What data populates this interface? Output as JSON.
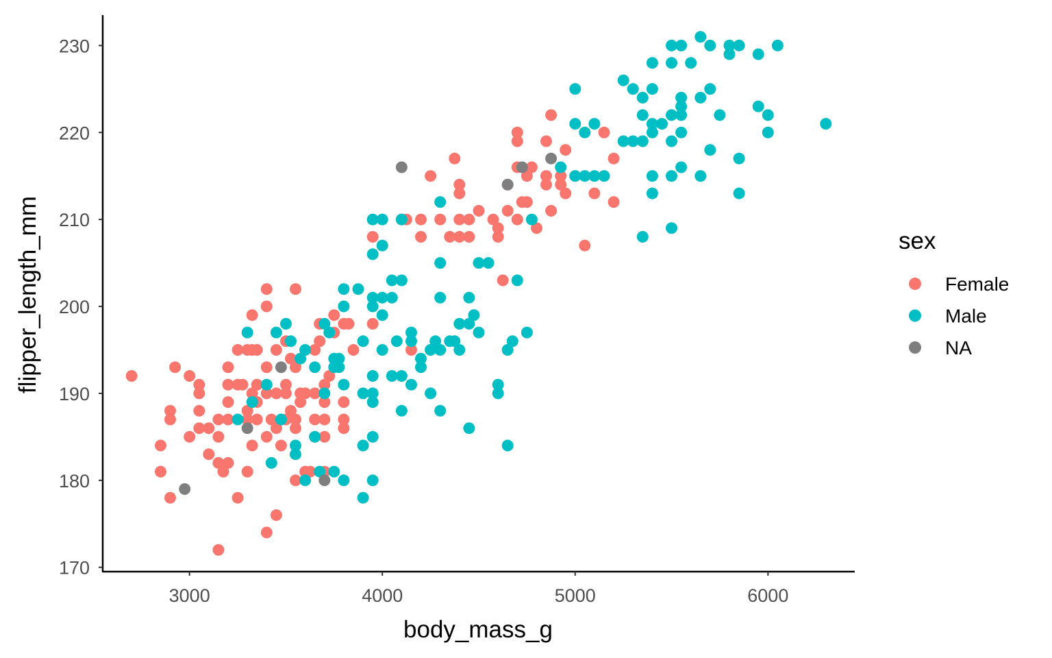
{
  "chart_data": {
    "type": "scatter",
    "title": "",
    "xlabel": "body_mass_g",
    "ylabel": "flipper_length_mm",
    "xlim": [
      2550,
      6450
    ],
    "ylim": [
      169.5,
      233.5
    ],
    "xticks": [
      "3000",
      "4000",
      "5000",
      "6000"
    ],
    "yticks": [
      "170",
      "180",
      "190",
      "200",
      "210",
      "220",
      "230"
    ],
    "grid": false,
    "legend": {
      "title": "sex",
      "position": "right"
    },
    "series": [
      {
        "name": "Female",
        "color": "#F8766D",
        "points": [
          [
            2700,
            192
          ],
          [
            2850,
            184
          ],
          [
            2850,
            181
          ],
          [
            2900,
            188
          ],
          [
            2900,
            187
          ],
          [
            2900,
            178
          ],
          [
            2925,
            193
          ],
          [
            3000,
            192
          ],
          [
            3000,
            185
          ],
          [
            3050,
            191
          ],
          [
            3050,
            190
          ],
          [
            3050,
            188
          ],
          [
            3050,
            186
          ],
          [
            3100,
            186
          ],
          [
            3100,
            183
          ],
          [
            3150,
            187
          ],
          [
            3150,
            185
          ],
          [
            3150,
            182
          ],
          [
            3150,
            172
          ],
          [
            3175,
            181
          ],
          [
            3200,
            193
          ],
          [
            3200,
            191
          ],
          [
            3200,
            189
          ],
          [
            3200,
            187
          ],
          [
            3200,
            182
          ],
          [
            3250,
            195
          ],
          [
            3250,
            191
          ],
          [
            3250,
            178
          ],
          [
            3275,
            191
          ],
          [
            3300,
            195
          ],
          [
            3300,
            188
          ],
          [
            3300,
            187
          ],
          [
            3300,
            181
          ],
          [
            3325,
            199
          ],
          [
            3325,
            195
          ],
          [
            3325,
            190
          ],
          [
            3325,
            184
          ],
          [
            3350,
            195
          ],
          [
            3350,
            191
          ],
          [
            3350,
            189
          ],
          [
            3350,
            187
          ],
          [
            3400,
            202
          ],
          [
            3400,
            200
          ],
          [
            3400,
            193
          ],
          [
            3400,
            190
          ],
          [
            3400,
            185
          ],
          [
            3400,
            174
          ],
          [
            3425,
            187
          ],
          [
            3450,
            195
          ],
          [
            3450,
            190
          ],
          [
            3450,
            186
          ],
          [
            3450,
            176
          ],
          [
            3475,
            184
          ],
          [
            3500,
            196
          ],
          [
            3500,
            191
          ],
          [
            3500,
            190
          ],
          [
            3500,
            187
          ],
          [
            3525,
            194
          ],
          [
            3525,
            188
          ],
          [
            3550,
            202
          ],
          [
            3550,
            193
          ],
          [
            3550,
            187
          ],
          [
            3550,
            186
          ],
          [
            3550,
            180
          ],
          [
            3575,
            190
          ],
          [
            3575,
            189
          ],
          [
            3600,
            190
          ],
          [
            3600,
            181
          ],
          [
            3625,
            181
          ],
          [
            3650,
            195
          ],
          [
            3650,
            190
          ],
          [
            3650,
            187
          ],
          [
            3650,
            185
          ],
          [
            3675,
            196
          ],
          [
            3675,
            198
          ],
          [
            3700,
            191
          ],
          [
            3700,
            189
          ],
          [
            3700,
            187
          ],
          [
            3700,
            185
          ],
          [
            3700,
            181
          ],
          [
            3725,
            192
          ],
          [
            3750,
            199
          ],
          [
            3750,
            197
          ],
          [
            3800,
            198
          ],
          [
            3800,
            189
          ],
          [
            3800,
            187
          ],
          [
            3800,
            186
          ],
          [
            3825,
            198
          ],
          [
            3850,
            195
          ],
          [
            3950,
            208
          ],
          [
            3950,
            198
          ],
          [
            4100,
            210
          ],
          [
            4125,
            210
          ],
          [
            4150,
            195
          ],
          [
            4200,
            210
          ],
          [
            4200,
            208
          ],
          [
            4250,
            215
          ],
          [
            4300,
            210
          ],
          [
            4350,
            208
          ],
          [
            4400,
            214
          ],
          [
            4400,
            213
          ],
          [
            4400,
            210
          ],
          [
            4400,
            208
          ],
          [
            4375,
            217
          ],
          [
            4450,
            210
          ],
          [
            4450,
            208
          ],
          [
            4500,
            211
          ],
          [
            4575,
            210
          ],
          [
            4600,
            209
          ],
          [
            4600,
            208
          ],
          [
            4625,
            203
          ],
          [
            4650,
            214
          ],
          [
            4650,
            211
          ],
          [
            4700,
            220
          ],
          [
            4700,
            219
          ],
          [
            4700,
            216
          ],
          [
            4700,
            210
          ],
          [
            4725,
            212
          ],
          [
            4750,
            215
          ],
          [
            4750,
            212
          ],
          [
            4775,
            216
          ],
          [
            4800,
            209
          ],
          [
            4850,
            219
          ],
          [
            4850,
            215
          ],
          [
            4850,
            214
          ],
          [
            4875,
            222
          ],
          [
            4875,
            211
          ],
          [
            4925,
            215
          ],
          [
            4925,
            214
          ],
          [
            4950,
            218
          ],
          [
            4950,
            213
          ],
          [
            5000,
            215
          ],
          [
            5050,
            207
          ],
          [
            5100,
            213
          ],
          [
            5150,
            220
          ],
          [
            5200,
            217
          ],
          [
            5200,
            212
          ]
        ]
      },
      {
        "name": "Male",
        "color": "#00BFC4",
        "points": [
          [
            3250,
            187
          ],
          [
            3300,
            197
          ],
          [
            3325,
            189
          ],
          [
            3400,
            191
          ],
          [
            3425,
            182
          ],
          [
            3450,
            197
          ],
          [
            3475,
            187
          ],
          [
            3500,
            198
          ],
          [
            3525,
            196
          ],
          [
            3550,
            184
          ],
          [
            3550,
            183
          ],
          [
            3575,
            194
          ],
          [
            3600,
            195
          ],
          [
            3600,
            180
          ],
          [
            3650,
            193
          ],
          [
            3650,
            185
          ],
          [
            3675,
            181
          ],
          [
            3700,
            198
          ],
          [
            3700,
            190
          ],
          [
            3725,
            197
          ],
          [
            3750,
            194
          ],
          [
            3750,
            193
          ],
          [
            3750,
            181
          ],
          [
            3775,
            194
          ],
          [
            3775,
            193
          ],
          [
            3800,
            202
          ],
          [
            3800,
            200
          ],
          [
            3800,
            191
          ],
          [
            3800,
            180
          ],
          [
            3875,
            202
          ],
          [
            3900,
            196
          ],
          [
            3900,
            190
          ],
          [
            3900,
            184
          ],
          [
            3900,
            178
          ],
          [
            3950,
            210
          ],
          [
            3950,
            206
          ],
          [
            3950,
            201
          ],
          [
            3950,
            200
          ],
          [
            3950,
            192
          ],
          [
            3950,
            190
          ],
          [
            3950,
            189
          ],
          [
            3950,
            185
          ],
          [
            3950,
            180
          ],
          [
            4000,
            210
          ],
          [
            4000,
            201
          ],
          [
            4000,
            199
          ],
          [
            4000,
            195
          ],
          [
            4000,
            207
          ],
          [
            4050,
            203
          ],
          [
            4050,
            201
          ],
          [
            4050,
            192
          ],
          [
            4075,
            196
          ],
          [
            4100,
            210
          ],
          [
            4100,
            203
          ],
          [
            4100,
            192
          ],
          [
            4100,
            188
          ],
          [
            4150,
            197
          ],
          [
            4150,
            196
          ],
          [
            4150,
            191
          ],
          [
            4200,
            194
          ],
          [
            4200,
            193
          ],
          [
            4250,
            195
          ],
          [
            4250,
            190
          ],
          [
            4275,
            196
          ],
          [
            4300,
            212
          ],
          [
            4300,
            205
          ],
          [
            4300,
            201
          ],
          [
            4300,
            195
          ],
          [
            4300,
            188
          ],
          [
            4350,
            196
          ],
          [
            4375,
            196
          ],
          [
            4400,
            198
          ],
          [
            4400,
            195
          ],
          [
            4450,
            201
          ],
          [
            4450,
            198
          ],
          [
            4450,
            186
          ],
          [
            4475,
            199
          ],
          [
            4500,
            205
          ],
          [
            4500,
            197
          ],
          [
            4550,
            205
          ],
          [
            4600,
            191
          ],
          [
            4600,
            190
          ],
          [
            4650,
            195
          ],
          [
            4650,
            184
          ],
          [
            4675,
            196
          ],
          [
            4700,
            203
          ],
          [
            4750,
            197
          ],
          [
            4775,
            210
          ],
          [
            4925,
            216
          ],
          [
            5000,
            225
          ],
          [
            5000,
            221
          ],
          [
            5000,
            215
          ],
          [
            5050,
            220
          ],
          [
            5050,
            215
          ],
          [
            5100,
            221
          ],
          [
            5100,
            215
          ],
          [
            5150,
            215
          ],
          [
            5250,
            226
          ],
          [
            5250,
            219
          ],
          [
            5300,
            225
          ],
          [
            5300,
            219
          ],
          [
            5350,
            222
          ],
          [
            5350,
            224
          ],
          [
            5350,
            219
          ],
          [
            5350,
            208
          ],
          [
            5400,
            225
          ],
          [
            5400,
            221
          ],
          [
            5400,
            220
          ],
          [
            5400,
            215
          ],
          [
            5400,
            213
          ],
          [
            5400,
            228
          ],
          [
            5450,
            221
          ],
          [
            5500,
            230
          ],
          [
            5500,
            228
          ],
          [
            5500,
            222
          ],
          [
            5500,
            219
          ],
          [
            5500,
            215
          ],
          [
            5500,
            209
          ],
          [
            5550,
            230
          ],
          [
            5550,
            224
          ],
          [
            5550,
            223
          ],
          [
            5550,
            222
          ],
          [
            5550,
            220
          ],
          [
            5550,
            216
          ],
          [
            5600,
            228
          ],
          [
            5650,
            231
          ],
          [
            5650,
            224
          ],
          [
            5650,
            215
          ],
          [
            5700,
            230
          ],
          [
            5700,
            225
          ],
          [
            5700,
            218
          ],
          [
            5750,
            222
          ],
          [
            5800,
            230
          ],
          [
            5800,
            229
          ],
          [
            5850,
            230
          ],
          [
            5850,
            217
          ],
          [
            5850,
            213
          ],
          [
            5950,
            229
          ],
          [
            5950,
            223
          ],
          [
            6000,
            222
          ],
          [
            6000,
            220
          ],
          [
            6050,
            230
          ],
          [
            6300,
            221
          ]
        ]
      },
      {
        "name": "NA",
        "color": "#7F7F7F",
        "points": [
          [
            2975,
            179
          ],
          [
            3300,
            186
          ],
          [
            3475,
            193
          ],
          [
            3700,
            180
          ],
          [
            4100,
            216
          ],
          [
            4650,
            214
          ],
          [
            4725,
            216
          ],
          [
            4875,
            217
          ]
        ]
      }
    ]
  }
}
